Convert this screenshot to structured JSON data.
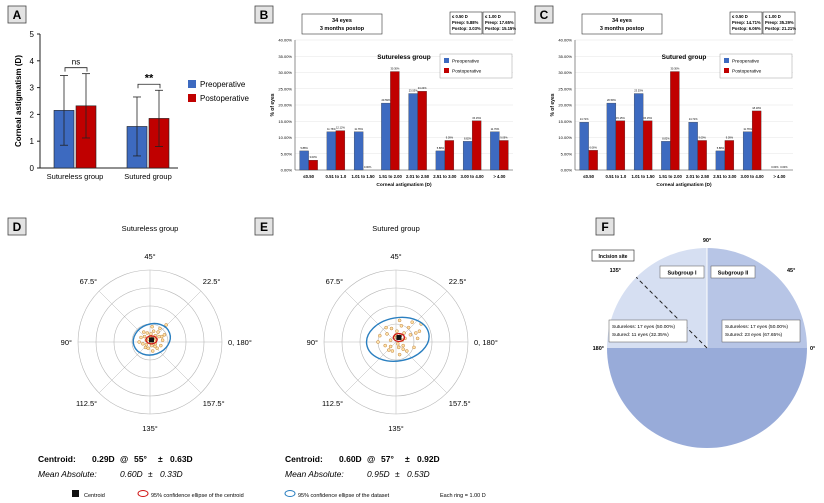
{
  "colors": {
    "pre": "#3D6AC0",
    "post": "#C00000",
    "pie_dark": "#98ABD9",
    "pie_mid": "#B7C5E6",
    "pie_light": "#D6DFF2"
  },
  "chart_data": [
    {
      "panel": "A",
      "type": "bar",
      "categories": [
        "Sutureless group",
        "Sutured group"
      ],
      "series": [
        {
          "name": "Preoperative",
          "values": [
            2.15,
            1.55
          ],
          "errors": [
            1.3,
            1.1
          ]
        },
        {
          "name": "Postoperative",
          "values": [
            2.32,
            1.85
          ],
          "errors": [
            1.2,
            1.05
          ]
        }
      ],
      "significance": [
        "ns",
        "**"
      ],
      "ylabel": "Corneal astigmatism (D)",
      "ylim": [
        0,
        5
      ],
      "yticks": [
        "0",
        "1",
        "2",
        "3",
        "4",
        "5"
      ]
    },
    {
      "panel": "B",
      "type": "bar",
      "title": "Sutureless group",
      "header": "34 eyes",
      "header2": "3 months postop",
      "box1": [
        "≤ 0.50 D",
        "Preop: 5.88%",
        "Postop: 3.03%"
      ],
      "box2": [
        "≤ 1.00 D",
        "Preop: 17.65%",
        "Postop: 15.15%"
      ],
      "categories": [
        "≤0.50",
        "0.51 to 1.0",
        "1.01 to 1.50",
        "1.51 to 2.00",
        "2.01 to 2.50",
        "2.51 to 3.00",
        "3.00 to 4.00",
        "> 4.00"
      ],
      "series": [
        {
          "name": "Preoperative",
          "values": [
            5.88,
            11.76,
            11.76,
            20.59,
            23.53,
            5.88,
            8.82,
            11.76
          ],
          "labels": [
            "5.88%",
            "11.76%",
            "11.76%",
            "20.59%",
            "23.53%",
            "5.88%",
            "8.82%",
            "11.76%"
          ]
        },
        {
          "name": "Postoperative",
          "values": [
            3.03,
            12.12,
            0.0,
            30.3,
            24.24,
            9.09,
            15.15,
            9.09
          ],
          "labels": [
            "3.03%",
            "12.12%",
            "0.00%",
            "30.30%",
            "24.24%",
            "9.09%",
            "15.15%",
            "9.09%"
          ]
        }
      ],
      "xlabel": "Corneal astigmatism (D)",
      "ylabel": "% of eyes",
      "ylim": [
        0,
        40
      ],
      "yticks": [
        "0.00%",
        "5.00%",
        "10.00%",
        "15.00%",
        "20.00%",
        "25.00%",
        "30.00%",
        "35.00%",
        "40.00%"
      ]
    },
    {
      "panel": "C",
      "type": "bar",
      "title": "Sutured group",
      "header": "34 eyes",
      "header2": "3 months postop",
      "box1": [
        "≤ 0.50 D",
        "Preop: 14.71%",
        "Postop: 6.06%"
      ],
      "box2": [
        "≤ 1.00 D",
        "Preop: 35.29%",
        "Postop: 21.21%"
      ],
      "categories": [
        "≤0.50",
        "0.51 to 1.0",
        "1.01 to 1.50",
        "1.51 to 2.00",
        "2.01 to 2.50",
        "2.51 to 3.00",
        "3.00 to 4.00",
        "> 4.00"
      ],
      "series": [
        {
          "name": "Preoperative",
          "values": [
            14.71,
            20.59,
            23.53,
            8.82,
            14.71,
            5.88,
            11.76,
            0.0
          ],
          "labels": [
            "14.71%",
            "20.59%",
            "23.53%",
            "8.82%",
            "14.71%",
            "5.88%",
            "11.76%",
            "0.00%"
          ]
        },
        {
          "name": "Postoperative",
          "values": [
            6.06,
            15.15,
            15.15,
            30.3,
            9.09,
            9.09,
            18.18,
            0.0
          ],
          "labels": [
            "6.06%",
            "15.15%",
            "15.15%",
            "30.30%",
            "9.09%",
            "9.09%",
            "18.18%",
            "0.00%"
          ]
        }
      ],
      "xlabel": "Corneal astigmatism (D)",
      "ylabel": "% of eyes",
      "ylim": [
        0,
        40
      ],
      "yticks": [
        "0.00%",
        "5.00%",
        "10.00%",
        "15.00%",
        "20.00%",
        "25.00%",
        "30.00%",
        "35.00%",
        "40.00%"
      ]
    },
    {
      "panel": "D",
      "type": "scatter",
      "title": "Sutureless group",
      "angles": [
        "45°",
        "22.5°",
        "0, 180°",
        "157.5°",
        "135°",
        "112.5°",
        "90°",
        "67.5°"
      ],
      "rings": 4,
      "centroid": {
        "magnitude": 0.29,
        "angle": 55,
        "sd": 0.63,
        "text": [
          "Centroid:",
          "0.29D",
          "@",
          "55°",
          "±",
          "0.63D"
        ]
      },
      "mean_abs": {
        "text": [
          "Mean Absolute:",
          "0.60D",
          "±",
          "0.33D"
        ]
      },
      "ellipse": {
        "rx_D": 1.05,
        "ry_D": 0.85,
        "rot": -20
      },
      "points": [
        [
          0.1,
          0.2
        ],
        [
          -0.2,
          0.1
        ],
        [
          0.3,
          -0.1
        ],
        [
          0.05,
          0.45
        ],
        [
          -0.4,
          -0.1
        ],
        [
          0.5,
          0.3
        ],
        [
          0.2,
          0.6
        ],
        [
          -0.1,
          -0.35
        ],
        [
          0.35,
          0.15
        ],
        [
          -0.3,
          0.3
        ],
        [
          0.6,
          -0.2
        ],
        [
          0.15,
          -0.5
        ],
        [
          -0.5,
          0.25
        ],
        [
          0.45,
          0.55
        ],
        [
          0.0,
          0.3
        ],
        [
          0.25,
          0.05
        ],
        [
          -0.15,
          0.5
        ],
        [
          0.7,
          0.1
        ],
        [
          -0.25,
          -0.3
        ],
        [
          0.1,
          -0.2
        ],
        [
          0.55,
          0.75
        ],
        [
          -0.6,
          0.0
        ],
        [
          0.3,
          0.35
        ],
        [
          0.05,
          -0.05
        ],
        [
          -0.05,
          0.15
        ],
        [
          0.4,
          -0.35
        ],
        [
          0.8,
          0.4
        ],
        [
          0.2,
          0.25
        ],
        [
          -0.35,
          0.55
        ],
        [
          0.12,
          0.85
        ],
        [
          0.9,
          0.95
        ],
        [
          -0.2,
          -0.15
        ],
        [
          0.28,
          -0.25
        ],
        [
          0.65,
          0.3
        ]
      ]
    },
    {
      "panel": "E",
      "type": "scatter",
      "title": "Sutured group",
      "angles": [
        "45°",
        "22.5°",
        "0, 180°",
        "157.5°",
        "135°",
        "112.5°",
        "90°",
        "67.5°"
      ],
      "rings": 4,
      "centroid": {
        "magnitude": 0.6,
        "angle": 57,
        "sd": 0.92,
        "text": [
          "Centroid:",
          "0.60D",
          "@",
          "57°",
          "±",
          "0.92D"
        ]
      },
      "mean_abs": {
        "text": [
          "Mean Absolute:",
          "0.95D",
          "±",
          "0.53D"
        ]
      },
      "ellipse": {
        "rx_D": 1.75,
        "ry_D": 1.2,
        "rot": -10
      },
      "points": [
        [
          0.1,
          0.2
        ],
        [
          -0.3,
          0.1
        ],
        [
          0.4,
          -0.2
        ],
        [
          0.05,
          0.6
        ],
        [
          -0.6,
          -0.2
        ],
        [
          0.8,
          0.4
        ],
        [
          0.3,
          0.9
        ],
        [
          -0.2,
          -0.5
        ],
        [
          0.5,
          0.2
        ],
        [
          -0.5,
          0.45
        ],
        [
          1.0,
          -0.3
        ],
        [
          0.2,
          -0.7
        ],
        [
          -0.9,
          0.35
        ],
        [
          0.7,
          0.8
        ],
        [
          0.0,
          0.4
        ],
        [
          0.35,
          0.1
        ],
        [
          -0.25,
          0.75
        ],
        [
          1.2,
          0.2
        ],
        [
          -0.4,
          -0.45
        ],
        [
          0.15,
          -0.3
        ],
        [
          0.9,
          1.1
        ],
        [
          -1.0,
          0.0
        ],
        [
          0.45,
          0.5
        ],
        [
          0.1,
          -0.1
        ],
        [
          -0.1,
          0.25
        ],
        [
          0.6,
          -0.5
        ],
        [
          1.3,
          0.6
        ],
        [
          0.25,
          0.35
        ],
        [
          -0.55,
          0.8
        ],
        [
          0.2,
          1.2
        ],
        [
          1.4,
          1.0
        ],
        [
          -0.3,
          -0.25
        ],
        [
          0.4,
          -0.4
        ],
        [
          1.1,
          0.5
        ]
      ]
    },
    {
      "panel": "F",
      "type": "pie",
      "angle_labels": [
        "90°",
        "45°",
        "0°",
        "180°",
        "135°"
      ],
      "legend": "Incision site",
      "subgroups": [
        {
          "name": "Subgroup I",
          "value": 45,
          "text": [
            "Sutureless: 17 eyes (50.00%)",
            "Sutured: 11 eyes (32.35%)"
          ]
        },
        {
          "name": "Subgroup II",
          "value": 45,
          "text": [
            "Sutureless: 17 eyes (50.00%)",
            "Sutured: 23 eyes (67.65%)"
          ]
        }
      ]
    }
  ],
  "legend": {
    "centroid": "Centroid",
    "ci_centroid": "95% confidence ellipse of the centroid",
    "ci_dataset": "95% confidence ellipse of the dataset",
    "ring": "Each ring = 1.00 D"
  }
}
